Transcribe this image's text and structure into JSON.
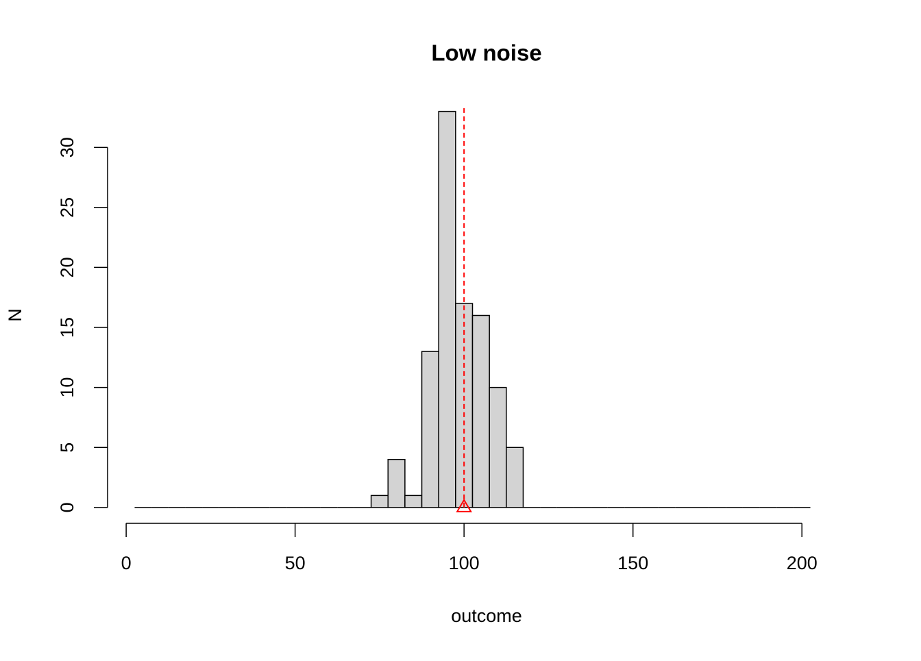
{
  "chart_data": {
    "type": "histogram",
    "title": "Low noise",
    "x_label": "outcome",
    "y_label": "N",
    "bins": [
      2.5,
      7.5,
      12.5,
      17.5,
      22.5,
      27.5,
      32.5,
      37.5,
      42.5,
      47.5,
      52.5,
      57.5,
      62.5,
      67.5,
      72.5,
      77.5,
      82.5,
      87.5,
      92.5,
      97.5,
      102.5,
      107.5,
      112.5,
      117.5,
      122.5,
      127.5,
      132.5,
      137.5,
      142.5,
      147.5,
      152.5,
      157.5,
      162.5,
      167.5,
      172.5,
      177.5,
      182.5,
      187.5,
      192.5,
      197.5,
      202.5
    ],
    "values": [
      0,
      0,
      0,
      0,
      0,
      0,
      0,
      0,
      0,
      0,
      0,
      0,
      0,
      0,
      1,
      4,
      1,
      13,
      33,
      17,
      16,
      10,
      5,
      0,
      0,
      0,
      0,
      0,
      0,
      0,
      0,
      0,
      0,
      0,
      0,
      0,
      0,
      0,
      0,
      0
    ],
    "color": "#d3d3d3",
    "xlim": [
      -5.5,
      210.5
    ],
    "xticks": [
      0,
      50,
      100,
      150,
      200
    ],
    "ylim": [
      -1.32,
      34.32
    ],
    "yticks": [
      0,
      5,
      10,
      15,
      20,
      25,
      30
    ],
    "reference_line": {
      "x": 100,
      "color": "#ff0000"
    }
  }
}
